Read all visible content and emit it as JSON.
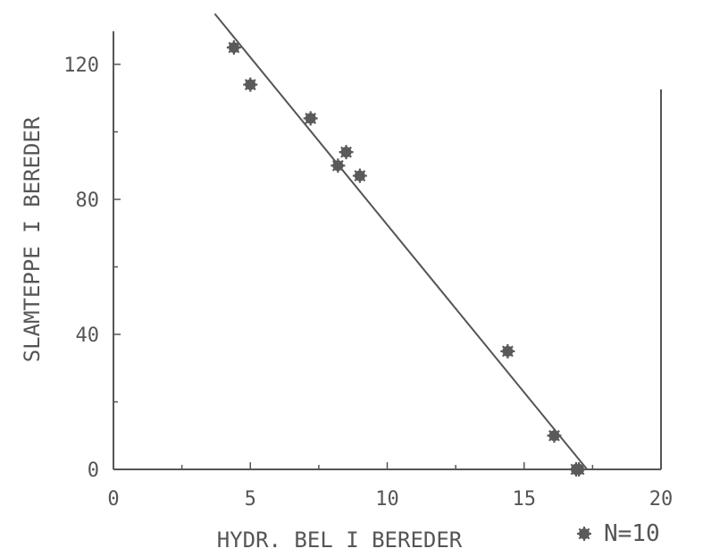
{
  "chart_data": {
    "type": "scatter",
    "xlabel": "HYDR. BEL I BEREDER",
    "ylabel": "SLAMTEPPE I BEREDER",
    "xlim": [
      0,
      20
    ],
    "ylim": [
      0,
      135
    ],
    "xticks": [
      "0",
      "5",
      "10",
      "15",
      "20"
    ],
    "yticks": [
      "0",
      "40",
      "80",
      "120"
    ],
    "xtick_values": [
      0,
      5,
      10,
      15,
      20
    ],
    "ytick_values": [
      0,
      40,
      80,
      120
    ],
    "points": [
      {
        "x": 4.4,
        "y": 125
      },
      {
        "x": 5.0,
        "y": 114
      },
      {
        "x": 7.2,
        "y": 104
      },
      {
        "x": 8.2,
        "y": 90
      },
      {
        "x": 8.5,
        "y": 94
      },
      {
        "x": 9.0,
        "y": 87
      },
      {
        "x": 14.4,
        "y": 35
      },
      {
        "x": 16.1,
        "y": 10
      },
      {
        "x": 16.9,
        "y": 0
      },
      {
        "x": 17.0,
        "y": 0
      }
    ],
    "fit_line": {
      "x": [
        3.7,
        17.3
      ],
      "y": [
        135,
        0
      ]
    },
    "legend": {
      "symbol": "*",
      "text": "N=10"
    },
    "grid": false,
    "colors": {
      "ink": "#555555",
      "background": "#ffffff"
    }
  }
}
